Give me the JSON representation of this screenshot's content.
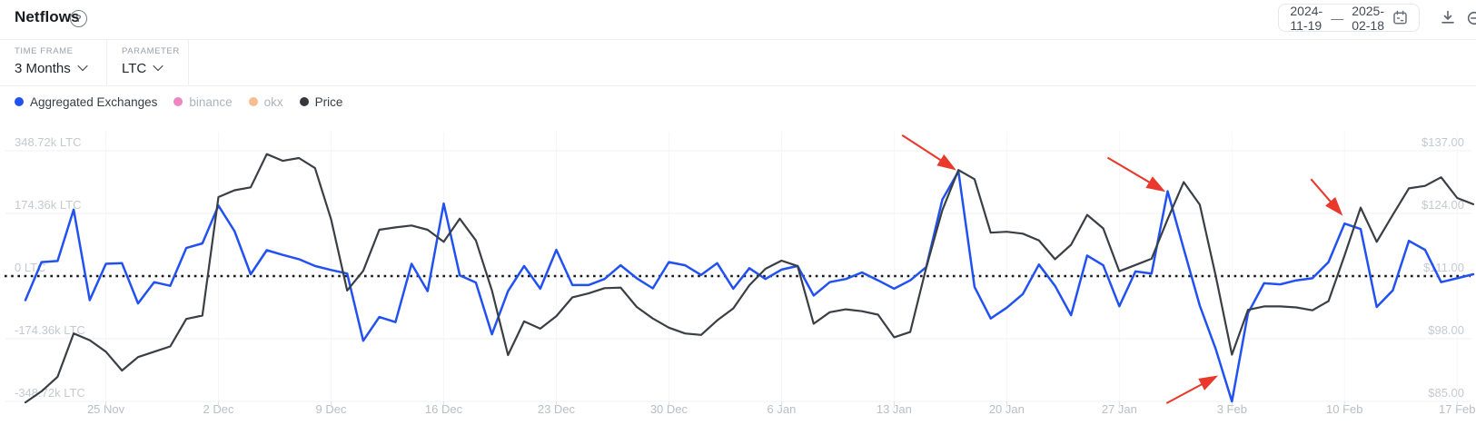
{
  "header": {
    "title": "Netflows",
    "help_icon": "?"
  },
  "toolbar": {
    "date_from": "2024-11-19",
    "date_separator": "—",
    "date_to": "2025-02-18",
    "calendar_icon": "calendar",
    "download_icon": "download",
    "reset_icon": "zoom-reset"
  },
  "controls": [
    {
      "label": "TIME FRAME",
      "value": "3 Months"
    },
    {
      "label": "PARAMETER",
      "value": "LTC"
    }
  ],
  "legend": [
    {
      "label": "Aggregated Exchanges",
      "color": "#2251f1",
      "active": true
    },
    {
      "label": "binance",
      "color": "#ee85c4",
      "active": false
    },
    {
      "label": "okx",
      "color": "#f6bd92",
      "active": false
    },
    {
      "label": "Price",
      "color": "#34383d",
      "active": true
    }
  ],
  "chart_data": {
    "type": "line",
    "title": "Netflows",
    "start_date": "2024-11-20",
    "end_date": "2025-02-18",
    "x_tick_labels": [
      "25 Nov",
      "2 Dec",
      "9 Dec",
      "16 Dec",
      "23 Dec",
      "30 Dec",
      "6 Jan",
      "13 Jan",
      "20 Jan",
      "27 Jan",
      "3 Feb",
      "10 Feb",
      "17 Feb"
    ],
    "x_tick_day_indices": [
      5,
      12,
      19,
      26,
      33,
      40,
      47,
      54,
      61,
      68,
      75,
      82,
      89
    ],
    "left_axis": {
      "unit": "thousand LTC",
      "labels": [
        "348.72k LTC",
        "174.36k LTC",
        "0 LTC",
        "-174.36k LTC",
        "-348.72k LTC"
      ],
      "values": [
        348.72,
        174.36,
        0,
        -174.36,
        -348.72
      ],
      "zero_line_style": "dotted-black"
    },
    "right_axis": {
      "unit": "USD",
      "labels": [
        "$137.00",
        "$124.00",
        "$111.00",
        "$98.00",
        "$85.00"
      ],
      "values": [
        137,
        124,
        111,
        98,
        85
      ]
    },
    "grid": "horizontal-light",
    "legend_position": "top-left",
    "series": [
      {
        "name": "Aggregated Exchanges",
        "axis": "left",
        "color": "#2251f1",
        "unit": "thousand LTC",
        "values": [
          -67,
          39,
          42,
          185,
          -67,
          34,
          36,
          -76,
          -17,
          -27,
          78,
          91,
          196,
          125,
          5,
          72,
          59,
          47,
          28,
          17,
          7,
          -180,
          -114,
          -128,
          34,
          -42,
          202,
          2,
          -18,
          -162,
          -42,
          28,
          -35,
          73,
          -25,
          -25,
          -8,
          30,
          -6,
          -34,
          39,
          30,
          3,
          36,
          -35,
          22,
          -8,
          18,
          28,
          -54,
          -17,
          -8,
          10,
          -12,
          -35,
          -12,
          25,
          213,
          291,
          -30,
          -118,
          -88,
          -50,
          32,
          -27,
          -109,
          57,
          30,
          -84,
          13,
          7,
          236,
          76,
          -82,
          -204,
          -348.72,
          -103,
          -20,
          -23,
          -12,
          -6,
          39,
          146,
          131,
          -86,
          -40,
          98,
          73,
          -17,
          -6,
          5
        ]
      },
      {
        "name": "Price",
        "axis": "right",
        "color": "#3a3f45",
        "unit": "USD",
        "values": [
          84.8,
          87.1,
          90.1,
          99.1,
          97.7,
          95.3,
          91.4,
          94.2,
          95.3,
          96.4,
          102.1,
          102.8,
          127.4,
          128.8,
          129.4,
          136.3,
          134.9,
          135.5,
          133.4,
          122.8,
          108.0,
          112.1,
          120.6,
          121.1,
          121.5,
          120.6,
          118.1,
          122.9,
          118.4,
          108.0,
          94.6,
          101.6,
          100.1,
          102.7,
          106.6,
          107.4,
          108.5,
          108.6,
          104.6,
          102.2,
          100.3,
          99.1,
          98.8,
          101.8,
          104.3,
          109.1,
          112.5,
          114.2,
          113.1,
          101.1,
          103.5,
          104.1,
          103.7,
          103.0,
          98.3,
          99.4,
          112.8,
          124.7,
          133.0,
          131.1,
          120.0,
          120.2,
          119.8,
          118.4,
          114.5,
          117.5,
          123.7,
          120.9,
          112.0,
          113.3,
          114.6,
          122.8,
          130.5,
          125.8,
          110.9,
          94.7,
          104.0,
          104.7,
          104.7,
          104.5,
          103.9,
          105.8,
          115.3,
          125.2,
          118.1,
          123.7,
          129.2,
          129.7,
          131.5,
          127.2,
          125.9
        ]
      }
    ],
    "annotations": {
      "arrow_color": "#e8392c",
      "arrows": [
        {
          "target_series": "Aggregated Exchanges",
          "day_index": 58,
          "direction": "down-right",
          "tip_dx": -5,
          "tip_dy": -3,
          "tail_dx": -62,
          "tail_dy": -40
        },
        {
          "target_series": "Aggregated Exchanges",
          "day_index": 71,
          "direction": "down-right",
          "tip_dx": -5,
          "tip_dy": -1,
          "tail_dx": -66,
          "tail_dy": -37
        },
        {
          "target_series": "Aggregated Exchanges",
          "day_index": 75,
          "direction": "up-right",
          "tip_dx": -18,
          "tip_dy": -27,
          "tail_dx": -72,
          "tail_dy": 2
        },
        {
          "target_series": "Aggregated Exchanges",
          "day_index": 82,
          "direction": "down-right",
          "tip_dx": -4,
          "tip_dy": -11,
          "tail_dx": -37,
          "tail_dy": -49
        }
      ]
    }
  }
}
